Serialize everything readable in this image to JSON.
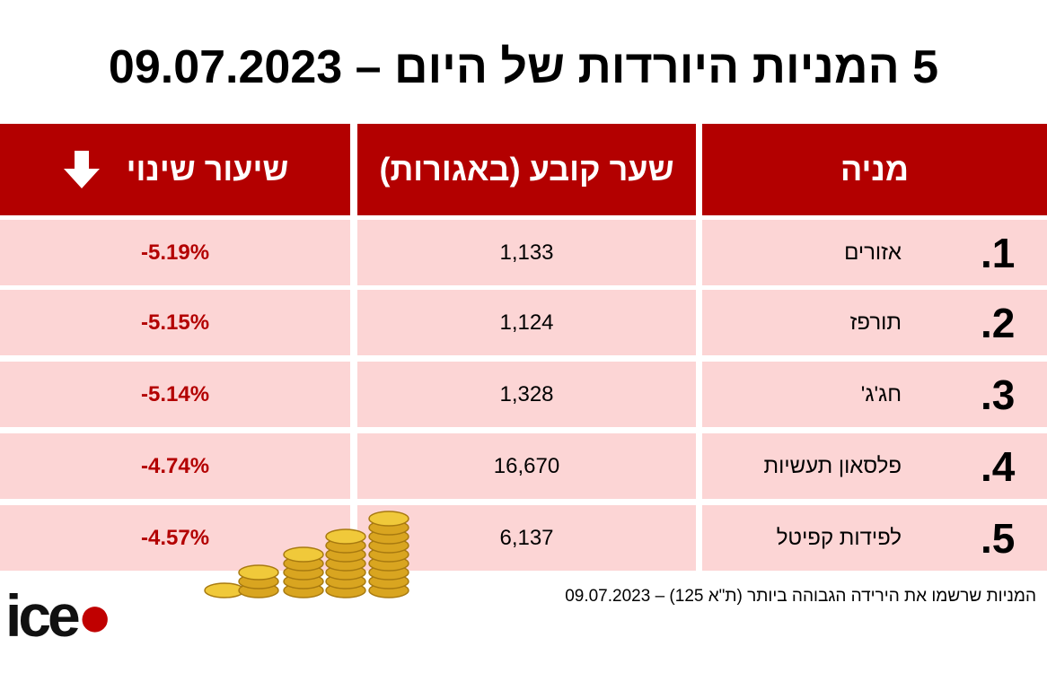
{
  "header": {
    "title": "5 המניות היורדות של היום – 09.07.2023"
  },
  "table": {
    "columns": [
      "מניה",
      "שער קובע (באגורות)",
      "שיעור שינוי"
    ],
    "rows": [
      [
        "1.",
        "אזורים",
        "1,133",
        "-5.19%"
      ],
      [
        "2.",
        "תורפז",
        "1,124",
        "-5.15%"
      ],
      [
        "3.",
        "חג'ג'",
        "1,328",
        "-5.14%"
      ],
      [
        "4.",
        "פלסאון תעשיות",
        "16,670",
        "-4.74%"
      ],
      [
        "5.",
        "לפידות קפיטל",
        "6,137",
        "-4.57%"
      ]
    ]
  },
  "footnote": "המניות שרשמו את הירידה הגבוהה ביותר (ת\"א 125) – 09.07.2023",
  "logo": "ice"
}
